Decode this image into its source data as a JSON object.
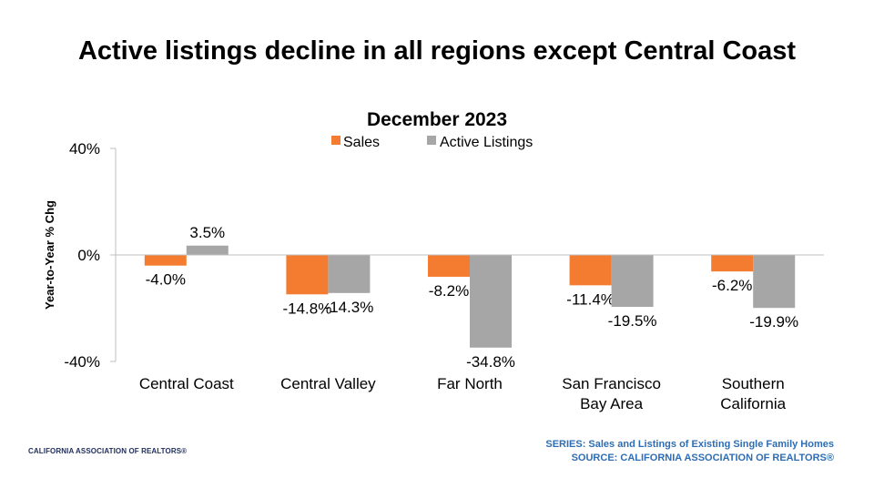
{
  "header": {
    "title": "Active listings decline in all regions except Central Coast"
  },
  "footer": {
    "org": "CALIFORNIA ASSOCIATION OF REALTORS®",
    "series_line": "SERIES: Sales and Listings of Existing Single Family Homes",
    "source_line": "SOURCE: CALIFORNIA ASSOCIATION OF REALTORS®"
  },
  "chart_data": {
    "type": "bar",
    "title": "December 2023",
    "ylabel": "Year-to-Year % Chg",
    "xlabel": "",
    "ylim": [
      -40,
      40
    ],
    "yticks": [
      40,
      0,
      -40
    ],
    "ytick_labels": [
      "40%",
      "0%",
      "-40%"
    ],
    "grid": false,
    "legend_position": "top-center",
    "categories": [
      [
        "Central Coast"
      ],
      [
        "Central Valley"
      ],
      [
        "Far North"
      ],
      [
        "San Francisco",
        "Bay Area"
      ],
      [
        "Southern",
        "California"
      ]
    ],
    "series": [
      {
        "name": "Sales",
        "color": "#f47c30",
        "values": [
          -4.0,
          -14.8,
          -8.2,
          -11.4,
          -6.2
        ],
        "labels": [
          "-4.0%",
          "-14.8%",
          "-8.2%",
          "-11.4%",
          "-6.2%"
        ]
      },
      {
        "name": "Active Listings",
        "color": "#a6a6a6",
        "values": [
          3.5,
          -14.3,
          -34.8,
          -19.5,
          -19.9
        ],
        "labels": [
          "3.5%",
          "-14.3%",
          "-34.8%",
          "-19.5%",
          "-19.9%"
        ]
      }
    ]
  }
}
